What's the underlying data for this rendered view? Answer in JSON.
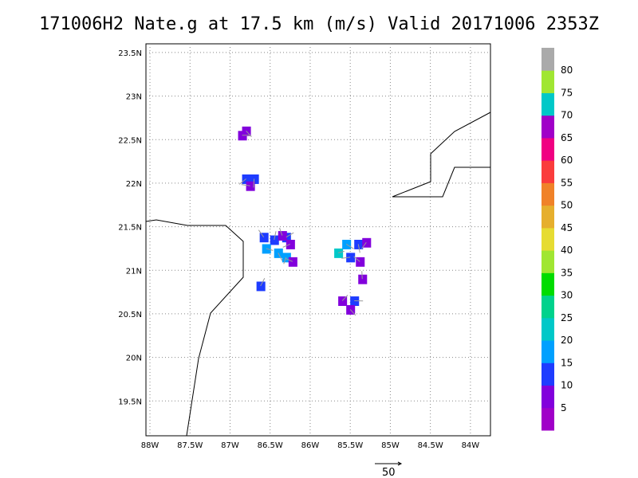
{
  "title": "171006H2 Nate.g at 17.5 km (m/s) Valid 20171006 2353Z",
  "lat_labels": [
    "23.5N",
    "23N",
    "22.5N",
    "22N",
    "21.5N",
    "21N",
    "20.5N",
    "20N",
    "19.5N"
  ],
  "lat_values": [
    23.5,
    23,
    22.5,
    22,
    21.5,
    21,
    20.5,
    20,
    19.5
  ],
  "lon_labels": [
    "88W",
    "87.5W",
    "87W",
    "86.5W",
    "86W",
    "85.5W",
    "85W",
    "84.5W",
    "84W"
  ],
  "lon_values": [
    -88,
    -87.5,
    -87,
    -86.5,
    -86,
    -85.5,
    -85,
    -84.5,
    -84
  ],
  "map_extent": {
    "lon_min": -88.05,
    "lon_max": -83.75,
    "lat_min": 19.1,
    "lat_max": 23.6
  },
  "colorbar": {
    "colors": [
      "#a000c8",
      "#8200dc",
      "#1e3cff",
      "#00a0ff",
      "#00c8c8",
      "#00d28c",
      "#00dc00",
      "#a0e632",
      "#e6dc32",
      "#e6af2d",
      "#f08228",
      "#fa3c3c",
      "#f00082",
      "#a000c8",
      "#00c8c8",
      "#a0e632",
      "#aaaaaa"
    ],
    "labels": [
      "5",
      "10",
      "15",
      "20",
      "25",
      "30",
      "35",
      "40",
      "45",
      "50",
      "55",
      "60",
      "65",
      "70",
      "75",
      "80"
    ]
  },
  "reference_vector": {
    "label": "50"
  },
  "colors": {
    "purple": "#8200dc",
    "blue": "#1e3cff",
    "lightblue": "#00a0ff",
    "cyan": "#00c8c8",
    "coast": "#000000",
    "grid": "#888888",
    "arrow": "#999999"
  },
  "chart_data": {
    "type": "heatmap",
    "title": "171006H2 Nate.g at 17.5 km (m/s) Valid 20171006 2353Z",
    "units": "m/s",
    "xlabel": "",
    "ylabel": "",
    "xlim": [
      -88.05,
      -83.75
    ],
    "ylim": [
      19.1,
      23.6
    ],
    "grid": true,
    "cells": [
      {
        "lon": -86.85,
        "lat": 22.55,
        "value": 7
      },
      {
        "lon": -86.8,
        "lat": 22.6,
        "value": 7
      },
      {
        "lon": -86.7,
        "lat": 22.05,
        "value": 13
      },
      {
        "lon": -86.8,
        "lat": 22.05,
        "value": 13
      },
      {
        "lon": -86.75,
        "lat": 21.97,
        "value": 8
      },
      {
        "lon": -86.58,
        "lat": 21.38,
        "value": 13
      },
      {
        "lon": -86.45,
        "lat": 21.35,
        "value": 13
      },
      {
        "lon": -86.3,
        "lat": 21.38,
        "value": 13
      },
      {
        "lon": -86.55,
        "lat": 21.25,
        "value": 16
      },
      {
        "lon": -86.4,
        "lat": 21.2,
        "value": 18
      },
      {
        "lon": -86.3,
        "lat": 21.15,
        "value": 16
      },
      {
        "lon": -86.25,
        "lat": 21.3,
        "value": 7
      },
      {
        "lon": -86.22,
        "lat": 21.1,
        "value": 7
      },
      {
        "lon": -86.35,
        "lat": 21.4,
        "value": 7
      },
      {
        "lon": -86.62,
        "lat": 20.82,
        "value": 13
      },
      {
        "lon": -85.65,
        "lat": 21.2,
        "value": 20
      },
      {
        "lon": -85.55,
        "lat": 21.3,
        "value": 18
      },
      {
        "lon": -85.4,
        "lat": 21.3,
        "value": 13
      },
      {
        "lon": -85.3,
        "lat": 21.32,
        "value": 7
      },
      {
        "lon": -85.5,
        "lat": 21.15,
        "value": 13
      },
      {
        "lon": -85.38,
        "lat": 21.1,
        "value": 7
      },
      {
        "lon": -85.35,
        "lat": 20.9,
        "value": 7
      },
      {
        "lon": -85.6,
        "lat": 20.65,
        "value": 7
      },
      {
        "lon": -85.45,
        "lat": 20.65,
        "value": 13
      },
      {
        "lon": -85.5,
        "lat": 20.55,
        "value": 7
      }
    ]
  }
}
